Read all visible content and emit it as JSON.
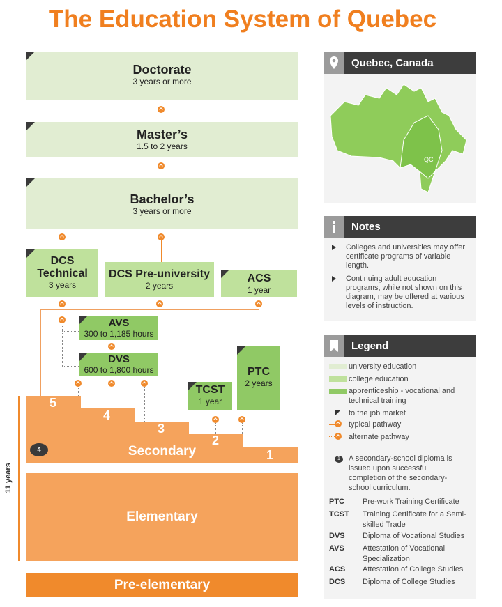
{
  "title": "The Education System of Quebec",
  "colors": {
    "accent": "#f07f1f",
    "university": "#e1edd2",
    "college": "#bfe19c",
    "apprenticeship": "#90c965",
    "secondary": "#f5a35c",
    "pre_elementary": "#f08a2c"
  },
  "levels": {
    "doctorate": {
      "name": "Doctorate",
      "duration": "3 years or more"
    },
    "masters": {
      "name": "Master’s",
      "duration": "1.5 to 2 years"
    },
    "bachelors": {
      "name": "Bachelor’s",
      "duration": "3 years or more"
    },
    "dcs_technical": {
      "name1": "DCS",
      "name2": "Technical",
      "duration": "3 years"
    },
    "dcs_preuniversity": {
      "name": "DCS Pre-university",
      "duration": "2 years"
    },
    "acs": {
      "name": "ACS",
      "duration": "1 year"
    },
    "avs": {
      "name": "AVS",
      "duration": "300 to 1,185 hours"
    },
    "dvs": {
      "name": "DVS",
      "duration": "600 to 1,800 hours"
    },
    "tcst": {
      "name": "TCST",
      "duration": "1 year"
    },
    "ptc": {
      "name": "PTC",
      "duration": "2 years"
    },
    "secondary": {
      "name": "Secondary",
      "steps": [
        "1",
        "2",
        "3",
        "4",
        "5"
      ],
      "badge": "4"
    },
    "elementary": {
      "name": "Elementary"
    },
    "pre_elementary": {
      "name": "Pre-elementary"
    },
    "span_label": "11 years"
  },
  "location": {
    "title": "Quebec, Canada",
    "icon": "map-pin-icon",
    "map_label": "QC"
  },
  "notes": {
    "title": "Notes",
    "icon": "info-icon",
    "items": [
      "Colleges and universities may offer certificate programs of variable length.",
      "Continuing adult education programs, while not shown on this diagram, may be offered at various levels of instruction."
    ]
  },
  "legend": {
    "title": "Legend",
    "icon": "bookmark-icon",
    "items": [
      "university education",
      "college education",
      "apprenticeship - vocational and technical training",
      "to the job market",
      "typical pathway",
      "alternate pathway"
    ],
    "diploma_badge": "1",
    "diploma_note": "A secondary-school diploma is issued upon successful completion of the secondary-school curriculum.",
    "abbreviations": [
      {
        "abbr": "PTC",
        "full": "Pre-work Training Certificate"
      },
      {
        "abbr": "TCST",
        "full": "Training Certificate for a Semi-skilled Trade"
      },
      {
        "abbr": "DVS",
        "full": "Diploma of Vocational Studies"
      },
      {
        "abbr": "AVS",
        "full": "Attestation of Vocational Specialization"
      },
      {
        "abbr": "ACS",
        "full": "Attestation of College Studies"
      },
      {
        "abbr": "DCS",
        "full": "Diploma of College Studies"
      }
    ]
  }
}
